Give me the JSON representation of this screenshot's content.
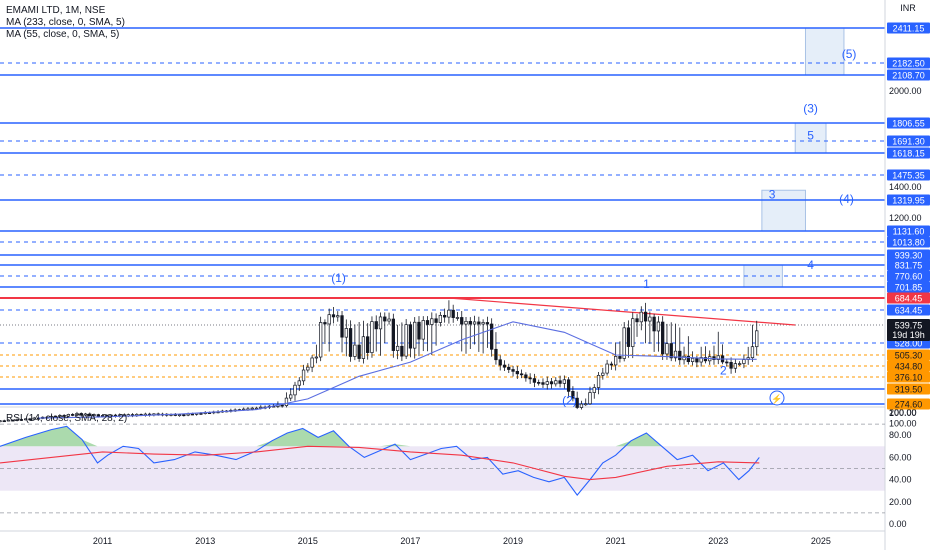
{
  "header": {
    "symbol_line": "EMAMI LTD, 1M, NSE",
    "ma_lines": [
      "MA (233, close, 0, SMA, 5)",
      "MA (55, close, 0, SMA, 5)"
    ],
    "currency": "INR"
  },
  "colors": {
    "blue_line": "#2962ff",
    "red_line": "#f23645",
    "orange": "#ff9800",
    "candle": "#131722",
    "ma_line": "#5b6ee1",
    "rsi_line": "#2962ff",
    "rsi_ma": "#f23645",
    "rsi_band": "#ede7f6",
    "wave_box": "#dce8f7"
  },
  "chart_data": [
    {
      "type": "candlestick",
      "title": "EMAMI LTD, 1M, NSE",
      "x_ticks": [
        "2011",
        "2013",
        "2015",
        "2017",
        "2019",
        "2021",
        "2023",
        "2025"
      ],
      "y_ticks": [
        100,
        200,
        1000,
        1200,
        1400,
        2000
      ],
      "current_price": "539.75",
      "countdown": "19d 19h",
      "price_axis_labels": [
        {
          "value": 2411.15,
          "text": "2411.15",
          "style": "blue"
        },
        {
          "value": 2182.5,
          "text": "2182.50",
          "style": "blue"
        },
        {
          "value": 2108.7,
          "text": "2108.70",
          "style": "blue"
        },
        {
          "value": 1806.55,
          "text": "1806.55",
          "style": "blue"
        },
        {
          "value": 1691.3,
          "text": "1691.30",
          "style": "blue"
        },
        {
          "value": 1618.15,
          "text": "1618.15",
          "style": "blue"
        },
        {
          "value": 1475.35,
          "text": "1475.35",
          "style": "blue"
        },
        {
          "value": 1319.95,
          "text": "1319.95",
          "style": "blue"
        },
        {
          "value": 1131.6,
          "text": "1131.60",
          "style": "blue"
        },
        {
          "value": 1013.8,
          "text": "1013.80",
          "style": "blue"
        },
        {
          "value": 939.3,
          "text": "939.30",
          "style": "blue"
        },
        {
          "value": 831.75,
          "text": "831.75",
          "style": "blue"
        },
        {
          "value": 770.6,
          "text": "770.60",
          "style": "blue"
        },
        {
          "value": 701.85,
          "text": "701.85",
          "style": "blue"
        },
        {
          "value": 684.45,
          "text": "684.45",
          "style": "red"
        },
        {
          "value": 634.45,
          "text": "634.45",
          "style": "blue"
        },
        {
          "value": 528.0,
          "text": "528.00",
          "style": "blue"
        },
        {
          "value": 505.3,
          "text": "505.30",
          "style": "orange"
        },
        {
          "value": 434.8,
          "text": "434.80",
          "style": "orange"
        },
        {
          "value": 376.1,
          "text": "376.10",
          "style": "orange"
        },
        {
          "value": 319.5,
          "text": "319.50",
          "style": "orange"
        },
        {
          "value": 274.6,
          "text": "274.60",
          "style": "orange"
        }
      ],
      "solid_levels": [
        2411.15,
        2108.7,
        1806.55,
        1618.15,
        1319.95,
        1131.6,
        939.3,
        831.75,
        701.85,
        319.5,
        274.6
      ],
      "dashed_levels": [
        2182.5,
        1691.3,
        1475.35,
        1013.8,
        770.6,
        634.45,
        528.0
      ],
      "orange_levels": [
        505.3,
        434.8,
        376.1
      ],
      "resistance_level": 684.45,
      "trendline": [
        {
          "x": 2017.75,
          "y": 684.45
        },
        {
          "x": 2024.5,
          "y": 539.75
        }
      ],
      "series": [
        {
          "kind": "ohlc",
          "points": [
            {
              "x": 2009.0,
              "o": 120,
              "h": 130,
              "l": 112,
              "c": 125
            },
            {
              "x": 2009.5,
              "o": 125,
              "h": 145,
              "l": 118,
              "c": 140
            },
            {
              "x": 2010.0,
              "o": 140,
              "h": 168,
              "l": 135,
              "c": 160
            },
            {
              "x": 2010.5,
              "o": 160,
              "h": 192,
              "l": 152,
              "c": 185
            },
            {
              "x": 2010.75,
              "o": 185,
              "h": 196,
              "l": 170,
              "c": 178
            },
            {
              "x": 2011.0,
              "o": 178,
              "h": 186,
              "l": 160,
              "c": 168
            },
            {
              "x": 2011.5,
              "o": 168,
              "h": 180,
              "l": 155,
              "c": 175
            },
            {
              "x": 2012.0,
              "o": 175,
              "h": 190,
              "l": 165,
              "c": 182
            },
            {
              "x": 2012.5,
              "o": 182,
              "h": 195,
              "l": 170,
              "c": 176
            },
            {
              "x": 2013.0,
              "o": 176,
              "h": 202,
              "l": 172,
              "c": 196
            },
            {
              "x": 2013.5,
              "o": 196,
              "h": 222,
              "l": 190,
              "c": 218
            },
            {
              "x": 2014.0,
              "o": 218,
              "h": 245,
              "l": 212,
              "c": 240
            },
            {
              "x": 2014.5,
              "o": 240,
              "h": 272,
              "l": 232,
              "c": 265
            },
            {
              "x": 2014.75,
              "o": 265,
              "h": 340,
              "l": 258,
              "c": 330
            },
            {
              "x": 2015.0,
              "o": 330,
              "h": 455,
              "l": 320,
              "c": 440
            },
            {
              "x": 2015.25,
              "o": 440,
              "h": 560,
              "l": 430,
              "c": 540
            },
            {
              "x": 2015.5,
              "o": 540,
              "h": 700,
              "l": 520,
              "c": 610
            },
            {
              "x": 2015.75,
              "o": 610,
              "h": 660,
              "l": 480,
              "c": 520
            },
            {
              "x": 2016.0,
              "o": 520,
              "h": 560,
              "l": 470,
              "c": 500
            },
            {
              "x": 2016.5,
              "o": 500,
              "h": 610,
              "l": 480,
              "c": 585
            },
            {
              "x": 2016.75,
              "o": 585,
              "h": 620,
              "l": 480,
              "c": 505
            },
            {
              "x": 2017.0,
              "o": 505,
              "h": 560,
              "l": 490,
              "c": 535
            },
            {
              "x": 2017.5,
              "o": 535,
              "h": 600,
              "l": 515,
              "c": 570
            },
            {
              "x": 2017.75,
              "o": 570,
              "h": 684.45,
              "l": 555,
              "c": 620
            },
            {
              "x": 2018.0,
              "o": 620,
              "h": 660,
              "l": 530,
              "c": 555
            },
            {
              "x": 2018.5,
              "o": 555,
              "h": 600,
              "l": 500,
              "c": 550
            },
            {
              "x": 2018.75,
              "o": 550,
              "h": 560,
              "l": 420,
              "c": 440
            },
            {
              "x": 2019.0,
              "o": 440,
              "h": 460,
              "l": 390,
              "c": 405
            },
            {
              "x": 2019.5,
              "o": 405,
              "h": 420,
              "l": 330,
              "c": 345
            },
            {
              "x": 2020.0,
              "o": 345,
              "h": 380,
              "l": 310,
              "c": 355
            },
            {
              "x": 2020.25,
              "o": 355,
              "h": 360,
              "l": 218,
              "c": 250
            },
            {
              "x": 2020.5,
              "o": 250,
              "h": 310,
              "l": 240,
              "c": 300
            },
            {
              "x": 2020.75,
              "o": 300,
              "h": 420,
              "l": 290,
              "c": 410
            },
            {
              "x": 2021.0,
              "o": 410,
              "h": 500,
              "l": 400,
              "c": 480
            },
            {
              "x": 2021.5,
              "o": 480,
              "h": 630,
              "l": 470,
              "c": 600
            },
            {
              "x": 2021.75,
              "o": 600,
              "h": 640,
              "l": 530,
              "c": 555
            },
            {
              "x": 2022.0,
              "o": 555,
              "h": 580,
              "l": 490,
              "c": 510
            },
            {
              "x": 2022.5,
              "o": 510,
              "h": 530,
              "l": 440,
              "c": 470
            },
            {
              "x": 2023.0,
              "o": 470,
              "h": 520,
              "l": 440,
              "c": 490
            },
            {
              "x": 2023.25,
              "o": 490,
              "h": 495,
              "l": 418,
              "c": 430
            },
            {
              "x": 2023.5,
              "o": 430,
              "h": 480,
              "l": 420,
              "c": 470
            },
            {
              "x": 2023.75,
              "o": 470,
              "h": 560,
              "l": 460,
              "c": 539.75
            }
          ]
        },
        {
          "kind": "line",
          "points": [
            {
              "x": 2009.75,
              "y": 150
            },
            {
              "x": 2011.0,
              "y": 160
            },
            {
              "x": 2012.5,
              "y": 185
            },
            {
              "x": 2014.0,
              "y": 225
            },
            {
              "x": 2015.0,
              "y": 290
            },
            {
              "x": 2016.0,
              "y": 380
            },
            {
              "x": 2017.0,
              "y": 460
            },
            {
              "x": 2018.0,
              "y": 530
            },
            {
              "x": 2019.0,
              "y": 560
            },
            {
              "x": 2020.0,
              "y": 535
            },
            {
              "x": 2021.0,
              "y": 505
            },
            {
              "x": 2022.0,
              "y": 495
            },
            {
              "x": 2023.0,
              "y": 480
            },
            {
              "x": 2023.75,
              "y": 478
            }
          ]
        }
      ],
      "wave_labels": [
        {
          "text": "(1)",
          "x": 2015.6,
          "y": 734
        },
        {
          "text": "1",
          "x": 2021.6,
          "y": 700
        },
        {
          "text": "(2)",
          "x": 2020.1,
          "y": 270
        },
        {
          "text": "2",
          "x": 2023.1,
          "y": 390
        },
        {
          "text": "3",
          "x": 2024.05,
          "y": 1330
        },
        {
          "text": "4",
          "x": 2024.8,
          "y": 810
        },
        {
          "text": "(3)",
          "x": 2024.8,
          "y": 1870
        },
        {
          "text": "5",
          "x": 2024.8,
          "y": 1700
        },
        {
          "text": "(4)",
          "x": 2025.5,
          "y": 1300
        },
        {
          "text": "(5)",
          "x": 2025.55,
          "y": 2215
        }
      ],
      "target_boxes": [
        {
          "x0": 2024.7,
          "x1": 2025.45,
          "y_high": 2411.15,
          "y_low": 2108.7
        },
        {
          "x0": 2024.5,
          "x1": 2025.1,
          "y_high": 1806.55,
          "y_low": 1618.15
        },
        {
          "x0": 2023.85,
          "x1": 2024.7,
          "y_high": 1380,
          "y_low": 1131.6
        },
        {
          "x0": 2023.5,
          "x1": 2024.25,
          "y_high": 831.75,
          "y_low": 701.85
        }
      ]
    },
    {
      "type": "line",
      "title": "RSI (14, close, SMA, 28, 2)",
      "y_ticks": [
        "100.00",
        "80.00",
        "60.00",
        "40.00",
        "20.00",
        "0.00"
      ],
      "ylim": [
        0,
        100
      ],
      "band": [
        30,
        70
      ],
      "band_lines": [
        90,
        50,
        10
      ],
      "series": [
        {
          "kind": "rsi",
          "x": [
            2009.0,
            2009.5,
            2010.0,
            2010.3,
            2010.6,
            2010.9,
            2011.1,
            2011.4,
            2011.7,
            2012.0,
            2012.4,
            2012.8,
            2013.2,
            2013.6,
            2014.0,
            2014.3,
            2014.6,
            2014.9,
            2015.2,
            2015.5,
            2015.8,
            2016.1,
            2016.4,
            2016.7,
            2017.0,
            2017.3,
            2017.6,
            2017.9,
            2018.2,
            2018.5,
            2018.8,
            2019.1,
            2019.4,
            2019.7,
            2020.0,
            2020.25,
            2020.5,
            2020.75,
            2021.0,
            2021.3,
            2021.6,
            2021.9,
            2022.2,
            2022.5,
            2022.8,
            2023.1,
            2023.4,
            2023.6,
            2023.8
          ],
          "values": [
            70,
            78,
            85,
            88,
            76,
            55,
            62,
            70,
            68,
            55,
            58,
            65,
            62,
            58,
            66,
            75,
            82,
            86,
            78,
            84,
            70,
            60,
            66,
            72,
            58,
            63,
            68,
            70,
            58,
            60,
            45,
            48,
            42,
            38,
            42,
            26,
            40,
            55,
            62,
            75,
            82,
            70,
            58,
            62,
            48,
            55,
            40,
            48,
            60
          ]
        },
        {
          "kind": "rsi_ma",
          "x": [
            2009.0,
            2010.0,
            2011.0,
            2012.0,
            2013.0,
            2014.0,
            2015.0,
            2016.0,
            2017.0,
            2018.0,
            2019.0,
            2020.0,
            2020.5,
            2021.0,
            2022.0,
            2023.0,
            2023.8
          ],
          "values": [
            55,
            60,
            65,
            63,
            62,
            65,
            70,
            69,
            65,
            62,
            55,
            43,
            40,
            42,
            52,
            56,
            55
          ]
        }
      ]
    }
  ]
}
